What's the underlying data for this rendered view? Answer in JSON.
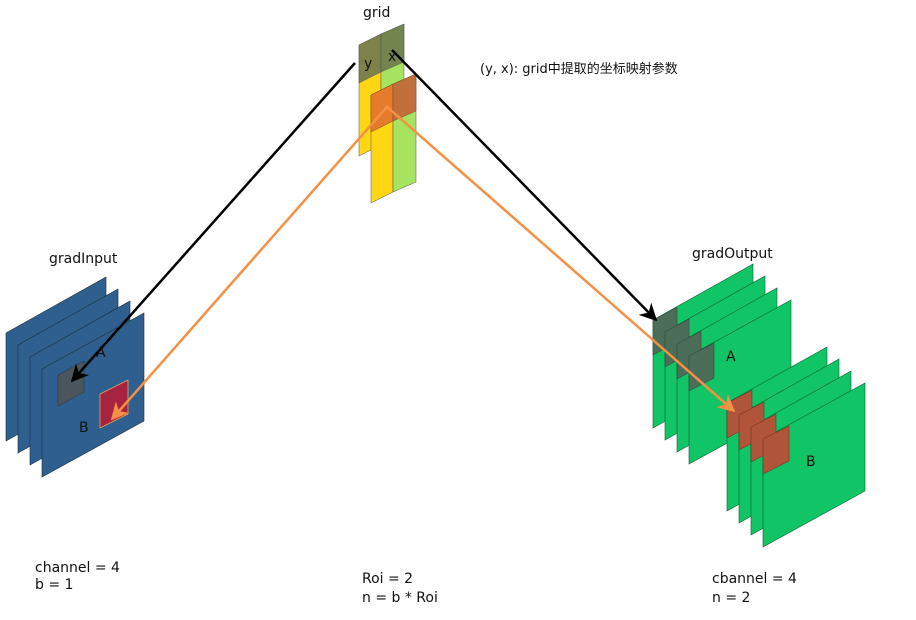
{
  "colors": {
    "grad_input": "#2E5F8E",
    "grad_output": "#11C465",
    "grid_yellow": "#FFD614",
    "grid_green": "#A6E35F",
    "grid_olive": "#6E7A4E",
    "orange_cell": "#E77B2C",
    "dark_cell": "#4A555E",
    "red_cell": "#A62440",
    "out_dark_cell": "#4C6E58",
    "out_red_cell": "#E1331D",
    "arrow_black": "#000000",
    "arrow_orange": "#F59044"
  },
  "grid": {
    "title": "grid",
    "y_label": "y",
    "x_label": "x",
    "annotation": "(y, x): grid中提取的坐标映射参数",
    "roi_text": "Roi = 2",
    "n_text": "n = b * Roi"
  },
  "grad_input": {
    "title": "gradInput",
    "label_a": "A",
    "label_b": "B",
    "channel_text": "channel = 4",
    "b_text": "b = 1"
  },
  "grad_output": {
    "title": "gradOutput",
    "label_a": "A",
    "label_b": "B",
    "channel_text": "cbannel = 4",
    "n_text": "n = 2"
  }
}
